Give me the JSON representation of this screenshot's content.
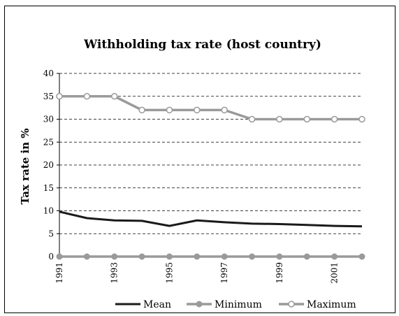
{
  "chart_data": {
    "type": "line",
    "title": "Withholding tax rate (host country)",
    "xlabel": "",
    "ylabel": "Tax rate in %",
    "x": [
      1991,
      1992,
      1993,
      1994,
      1995,
      1996,
      1997,
      1998,
      1999,
      2000,
      2001,
      2002
    ],
    "x_tick_labels": [
      "1991",
      "1993",
      "1995",
      "1997",
      "1999",
      "2001"
    ],
    "y_ticks": [
      0,
      5,
      10,
      15,
      20,
      25,
      30,
      35,
      40
    ],
    "ylim": [
      0,
      40
    ],
    "grid": "horizontal dashed",
    "legend_position": "bottom",
    "series": [
      {
        "name": "Mean",
        "color": "#1a1a1a",
        "marker": "none",
        "values": [
          9.8,
          8.4,
          7.9,
          7.8,
          6.7,
          7.9,
          7.5,
          7.2,
          7.1,
          6.9,
          6.7,
          6.6
        ]
      },
      {
        "name": "Minimum",
        "color": "#9a9a9a",
        "marker": "filled-circle",
        "values": [
          0,
          0,
          0,
          0,
          0,
          0,
          0,
          0,
          0,
          0,
          0,
          0
        ]
      },
      {
        "name": "Maximum",
        "color": "#9a9a9a",
        "marker": "open-circle",
        "values": [
          35,
          35,
          35,
          32,
          32,
          32,
          32,
          30,
          30,
          30,
          30,
          30
        ]
      }
    ]
  }
}
